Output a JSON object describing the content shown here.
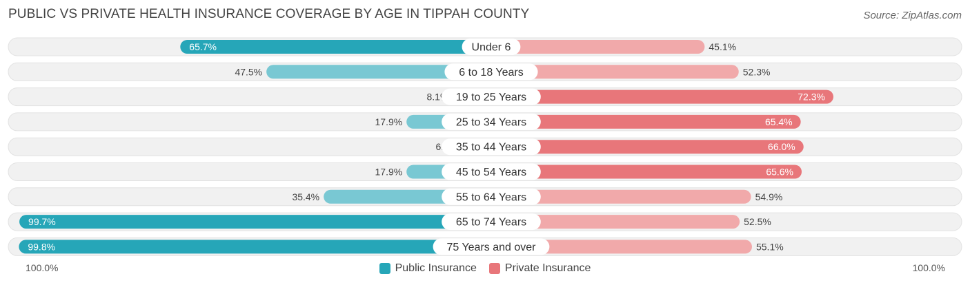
{
  "title": "PUBLIC VS PRIVATE HEALTH INSURANCE COVERAGE BY AGE IN TIPPAH COUNTY",
  "source": "Source: ZipAtlas.com",
  "colors": {
    "public_dark": "#26a6b8",
    "public_light": "#79c8d3",
    "private_dark": "#e8767a",
    "private_light": "#f1a9aa",
    "track": "#f1f1f1"
  },
  "legend": {
    "public_label": "Public Insurance",
    "private_label": "Private Insurance"
  },
  "axis": {
    "left_label": "100.0%",
    "right_label": "100.0%"
  },
  "chart_data": {
    "type": "bar",
    "orientation": "horizontal-diverging",
    "title": "PUBLIC VS PRIVATE HEALTH INSURANCE COVERAGE BY AGE IN TIPPAH COUNTY",
    "categories": [
      "Under 6",
      "6 to 18 Years",
      "19 to 25 Years",
      "25 to 34 Years",
      "35 to 44 Years",
      "45 to 54 Years",
      "55 to 64 Years",
      "65 to 74 Years",
      "75 Years and over"
    ],
    "series": [
      {
        "name": "Public Insurance",
        "values": [
          65.7,
          47.5,
          8.1,
          17.9,
          6.2,
          17.9,
          35.4,
          99.7,
          99.8
        ],
        "labels": [
          "65.7%",
          "47.5%",
          "8.1%",
          "17.9%",
          "6.2%",
          "17.9%",
          "35.4%",
          "99.7%",
          "99.8%"
        ]
      },
      {
        "name": "Private Insurance",
        "values": [
          45.1,
          52.3,
          72.3,
          65.4,
          66.0,
          65.6,
          54.9,
          52.5,
          55.1
        ],
        "labels": [
          "45.1%",
          "52.3%",
          "72.3%",
          "65.4%",
          "66.0%",
          "65.6%",
          "54.9%",
          "52.5%",
          "55.1%"
        ]
      }
    ],
    "xlim": [
      0,
      100
    ],
    "legend_position": "bottom-center"
  }
}
